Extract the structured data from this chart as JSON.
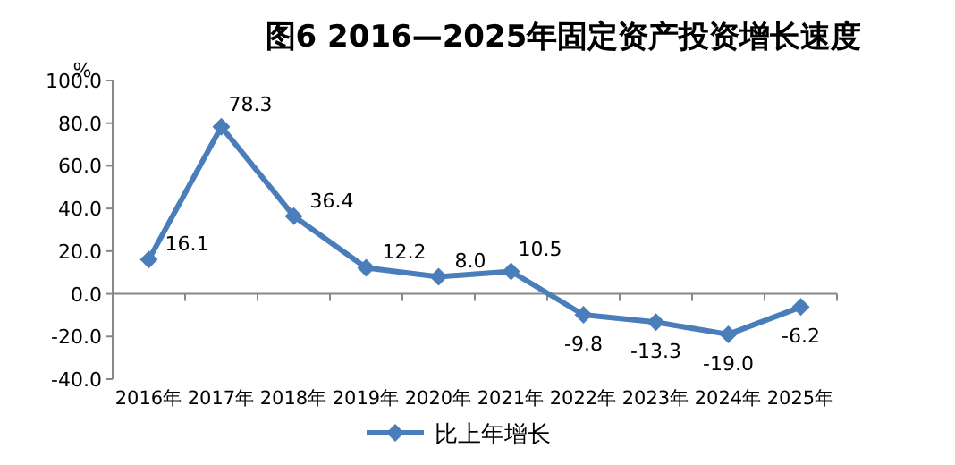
{
  "chart_data": {
    "type": "line",
    "title": "图6  2016—2025年固定资产投资增长速度",
    "ylabel": "%",
    "categories": [
      "2016年",
      "2017年",
      "2018年",
      "2019年",
      "2020年",
      "2021年",
      "2022年",
      "2023年",
      "2024年",
      "2025年"
    ],
    "series": [
      {
        "name": "比上年增长",
        "color": "#4a7ebb",
        "values": [
          16.1,
          78.3,
          36.4,
          12.2,
          8.0,
          10.5,
          -9.8,
          -13.3,
          -19.0,
          -6.2
        ],
        "value_labels": [
          "16.1",
          "78.3",
          "36.4",
          "12.2",
          "8.0",
          "10.5",
          "-9.8",
          "-13.3",
          "-19.0",
          "-6.2"
        ]
      }
    ],
    "ylim": [
      -40,
      100
    ],
    "yticks": [
      {
        "value": -40,
        "label": "-40.0"
      },
      {
        "value": -20,
        "label": "-20.0"
      },
      {
        "value": 0,
        "label": "0.0"
      },
      {
        "value": 20,
        "label": "20.0"
      },
      {
        "value": 40,
        "label": "40.0"
      },
      {
        "value": 60,
        "label": "60.0"
      },
      {
        "value": 80,
        "label": "80.0"
      },
      {
        "value": 100,
        "label": "100.0"
      }
    ],
    "marker": "diamond",
    "line_style": "solid",
    "legend": "bottom"
  }
}
